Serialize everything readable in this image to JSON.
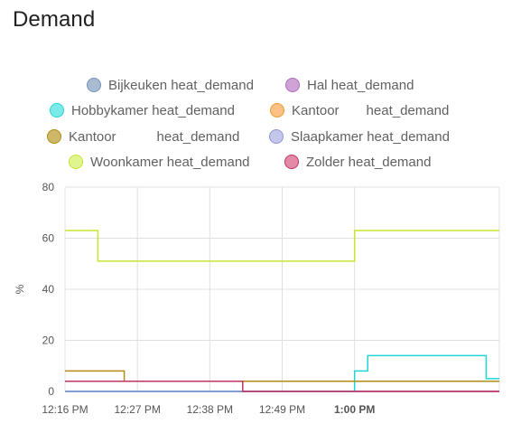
{
  "card": {
    "title": "Demand"
  },
  "chart_data": {
    "type": "line",
    "step": true,
    "ylabel": "%",
    "ylim": [
      0,
      80
    ],
    "yticks": [
      "0",
      "20",
      "40",
      "60",
      "80"
    ],
    "xlim": [
      "12:16 PM",
      "1:22 PM"
    ],
    "xticks": [
      {
        "label": "12:16 PM",
        "bold": false
      },
      {
        "label": "12:27 PM",
        "bold": false
      },
      {
        "label": "12:38 PM",
        "bold": false
      },
      {
        "label": "12:49 PM",
        "bold": false
      },
      {
        "label": "1:00 PM",
        "bold": true
      }
    ],
    "grid": true,
    "legend_position": "top",
    "series": [
      {
        "name": "Bijkeuken heat_demand",
        "color": "#7592b5",
        "fill": "#a7bbd3",
        "points": [
          [
            "12:16 PM",
            0
          ],
          [
            "1:22 PM",
            0
          ]
        ]
      },
      {
        "name": "Hal heat_demand",
        "color": "#b06bbd",
        "fill": "#cfa3d6",
        "points": [
          [
            "12:16 PM",
            0
          ],
          [
            "1:22 PM",
            0
          ]
        ]
      },
      {
        "name": "Hobbykamer heat_demand",
        "color": "#1fd6d6",
        "fill": "#7deaea",
        "points": [
          [
            "12:16 PM",
            0
          ],
          [
            "1:00 PM",
            0
          ],
          [
            "1:00 PM",
            8
          ],
          [
            "1:02 PM",
            8
          ],
          [
            "1:02 PM",
            14
          ],
          [
            "1:20 PM",
            14
          ],
          [
            "1:20 PM",
            5
          ],
          [
            "1:22 PM",
            5
          ]
        ]
      },
      {
        "name": "Kantoor heat_demand",
        "label": "Kantoor  heat_demand",
        "color": "#f59b2e",
        "fill": "#f9c184",
        "points": [
          [
            "12:16 PM",
            4
          ],
          [
            "1:22 PM",
            4
          ]
        ]
      },
      {
        "name": "Kantoor heat_demand",
        "label": "Kantoor   heat_demand",
        "color": "#b18d12",
        "fill": "#cdb86a",
        "points": [
          [
            "12:16 PM",
            8
          ],
          [
            "12:25 PM",
            8
          ],
          [
            "12:25 PM",
            4
          ],
          [
            "1:22 PM",
            4
          ]
        ]
      },
      {
        "name": "Slaapkamer heat_demand",
        "color": "#8d93d7",
        "fill": "#c4c7eb",
        "points": [
          [
            "12:16 PM",
            0
          ],
          [
            "1:22 PM",
            0
          ]
        ]
      },
      {
        "name": "Woonkamer heat_demand",
        "color": "#c5e531",
        "fill": "#e0f490",
        "points": [
          [
            "12:16 PM",
            63
          ],
          [
            "12:21 PM",
            63
          ],
          [
            "12:21 PM",
            51
          ],
          [
            "1:00 PM",
            51
          ],
          [
            "1:00 PM",
            63
          ],
          [
            "1:22 PM",
            63
          ]
        ]
      },
      {
        "name": "Zolder heat_demand",
        "color": "#c2325e",
        "fill": "#e38aa6",
        "points": [
          [
            "12:16 PM",
            4
          ],
          [
            "12:43 PM",
            4
          ],
          [
            "12:43 PM",
            0
          ],
          [
            "1:22 PM",
            0
          ]
        ]
      }
    ]
  }
}
